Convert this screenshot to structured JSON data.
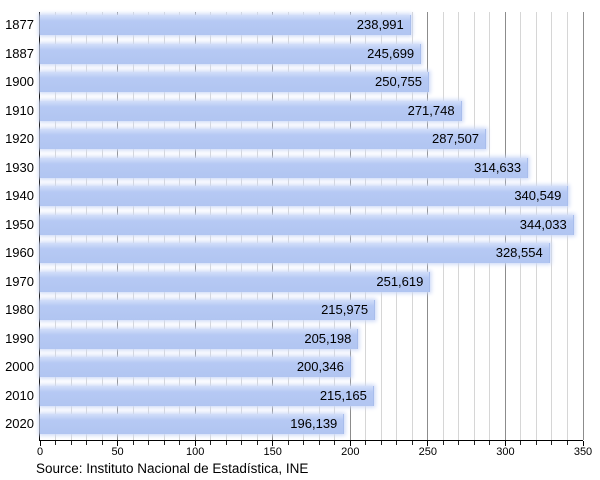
{
  "chart_data": {
    "type": "bar",
    "orientation": "horizontal",
    "title": "",
    "xlabel": "",
    "ylabel": "",
    "categories": [
      "1877",
      "1887",
      "1900",
      "1910",
      "1920",
      "1930",
      "1940",
      "1950",
      "1960",
      "1970",
      "1980",
      "1990",
      "2000",
      "2010",
      "2020"
    ],
    "values": [
      238991,
      245699,
      250755,
      271748,
      287507,
      314633,
      340549,
      344033,
      328554,
      251619,
      215975,
      205198,
      200346,
      215165,
      196139
    ],
    "value_labels": [
      "238,991",
      "245,699",
      "250,755",
      "271,748",
      "287,507",
      "314,633",
      "340,549",
      "344,033",
      "328,554",
      "251,619",
      "215,975",
      "205,198",
      "200,346",
      "215,165",
      "196,139"
    ],
    "xlim": [
      0,
      350
    ],
    "x_ticks": [
      0,
      50,
      100,
      150,
      200,
      250,
      300,
      350
    ],
    "x_tick_labels": [
      "0",
      "50",
      "100",
      "150",
      "200",
      "250",
      "300",
      "350"
    ],
    "x_minor_step": 10,
    "grid": true,
    "legend_position": "none",
    "bar_color": "#b3c7f2",
    "minor_grid_color": "#d6d6d6",
    "major_grid_color": "#8c8c8c",
    "axis_color": "#000000",
    "label_color": "#000000"
  },
  "source": {
    "text": "Source: Instituto Nacional de Estadística, INE"
  }
}
